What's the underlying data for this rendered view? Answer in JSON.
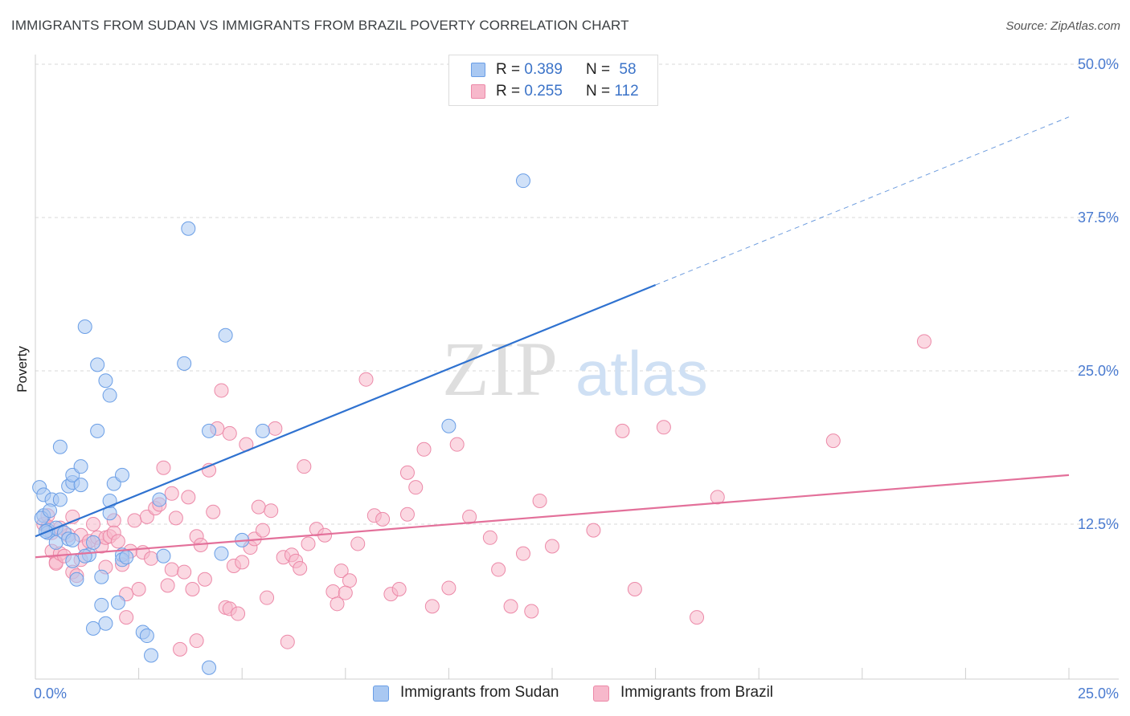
{
  "title": "IMMIGRANTS FROM SUDAN VS IMMIGRANTS FROM BRAZIL POVERTY CORRELATION CHART",
  "source": "Source: ZipAtlas.com",
  "watermark": {
    "zip": "ZIP",
    "atlas": "atlas"
  },
  "chart_data": {
    "type": "scatter",
    "ylabel": "Poverty",
    "xlim": [
      0,
      25
    ],
    "ylim": [
      0,
      50
    ],
    "x_tick_labels": [
      "0.0%",
      "25.0%"
    ],
    "y_ticks": [
      12.5,
      25.0,
      37.5,
      50.0
    ],
    "y_tick_labels": [
      "12.5%",
      "25.0%",
      "37.5%",
      "50.0%"
    ],
    "legend": {
      "rows": [
        {
          "r_label": "R = ",
          "r_value": "0.389",
          "n_label": "N = ",
          "n_value": "58",
          "color": "#a9c8f2"
        },
        {
          "r_label": "R = ",
          "r_value": "0.255",
          "n_label": "N = ",
          "n_value": "112",
          "color": "#f7b8cb"
        }
      ]
    },
    "series": [
      {
        "name": "Immigrants from Sudan",
        "fill": "#a9c8f2",
        "stroke": "#6a9ee6",
        "line_color": "#2f72d0",
        "trend": {
          "x0": 0,
          "y0": 11.5,
          "x1": 15,
          "y1": 32.0,
          "dash_x1": 25,
          "dash_y1": 45.7
        },
        "points": [
          [
            0.1,
            15.5
          ],
          [
            0.2,
            14.9
          ],
          [
            0.2,
            13.2
          ],
          [
            0.3,
            12.0
          ],
          [
            0.4,
            14.5
          ],
          [
            0.3,
            11.8
          ],
          [
            0.5,
            12.2
          ],
          [
            0.6,
            18.8
          ],
          [
            0.5,
            11.0
          ],
          [
            0.6,
            14.5
          ],
          [
            0.8,
            15.6
          ],
          [
            0.7,
            11.8
          ],
          [
            0.8,
            11.3
          ],
          [
            0.9,
            11.2
          ],
          [
            0.9,
            15.9
          ],
          [
            0.9,
            16.5
          ],
          [
            1.1,
            15.7
          ],
          [
            1.1,
            17.2
          ],
          [
            0.9,
            9.5
          ],
          [
            1.0,
            8.0
          ],
          [
            1.3,
            10.0
          ],
          [
            1.2,
            9.9
          ],
          [
            1.4,
            11.0
          ],
          [
            1.2,
            28.6
          ],
          [
            1.5,
            25.5
          ],
          [
            1.7,
            24.2
          ],
          [
            1.8,
            23.0
          ],
          [
            1.5,
            20.1
          ],
          [
            1.8,
            13.4
          ],
          [
            1.8,
            14.4
          ],
          [
            1.9,
            15.8
          ],
          [
            2.1,
            16.5
          ],
          [
            1.6,
            8.2
          ],
          [
            1.6,
            5.9
          ],
          [
            1.7,
            4.4
          ],
          [
            1.4,
            4.0
          ],
          [
            2.0,
            6.1
          ],
          [
            2.1,
            10.0
          ],
          [
            2.1,
            9.6
          ],
          [
            2.2,
            9.8
          ],
          [
            2.6,
            3.7
          ],
          [
            2.7,
            3.4
          ],
          [
            2.8,
            1.8
          ],
          [
            3.0,
            14.5
          ],
          [
            3.1,
            9.9
          ],
          [
            3.6,
            25.6
          ],
          [
            3.7,
            36.6
          ],
          [
            4.2,
            20.1
          ],
          [
            4.2,
            0.8
          ],
          [
            4.5,
            10.1
          ],
          [
            4.6,
            27.9
          ],
          [
            5.0,
            11.2
          ],
          [
            5.5,
            20.1
          ],
          [
            10.0,
            20.5
          ],
          [
            11.8,
            40.5
          ],
          [
            0.15,
            13.0
          ],
          [
            0.25,
            11.9
          ],
          [
            0.35,
            13.6
          ]
        ]
      },
      {
        "name": "Immigrants from Brazil",
        "fill": "#f7b8cb",
        "stroke": "#ec89a8",
        "line_color": "#e3709a",
        "trend": {
          "x0": 0,
          "y0": 9.8,
          "x1": 25,
          "y1": 16.5
        },
        "points": [
          [
            0.2,
            12.5
          ],
          [
            0.3,
            13.2
          ],
          [
            0.3,
            12.3
          ],
          [
            0.4,
            11.8
          ],
          [
            0.4,
            10.3
          ],
          [
            0.5,
            9.4
          ],
          [
            0.5,
            9.3
          ],
          [
            0.6,
            10.1
          ],
          [
            0.7,
            9.9
          ],
          [
            0.8,
            11.6
          ],
          [
            0.9,
            8.6
          ],
          [
            0.9,
            13.1
          ],
          [
            1.0,
            8.3
          ],
          [
            1.1,
            11.6
          ],
          [
            1.2,
            10.7
          ],
          [
            1.3,
            11.1
          ],
          [
            1.4,
            12.5
          ],
          [
            1.5,
            11.4
          ],
          [
            1.6,
            10.7
          ],
          [
            1.7,
            11.4
          ],
          [
            1.7,
            9.0
          ],
          [
            1.8,
            11.5
          ],
          [
            1.9,
            12.8
          ],
          [
            1.9,
            11.8
          ],
          [
            2.0,
            11.1
          ],
          [
            2.1,
            9.2
          ],
          [
            2.2,
            6.8
          ],
          [
            2.3,
            10.3
          ],
          [
            2.4,
            12.8
          ],
          [
            2.5,
            7.2
          ],
          [
            2.6,
            10.2
          ],
          [
            2.7,
            13.1
          ],
          [
            2.8,
            9.7
          ],
          [
            2.9,
            13.8
          ],
          [
            3.0,
            14.1
          ],
          [
            3.1,
            17.1
          ],
          [
            3.2,
            7.5
          ],
          [
            3.3,
            8.8
          ],
          [
            3.4,
            13.0
          ],
          [
            3.5,
            2.3
          ],
          [
            3.6,
            8.6
          ],
          [
            3.7,
            14.7
          ],
          [
            3.8,
            7.2
          ],
          [
            3.9,
            11.5
          ],
          [
            4.0,
            10.8
          ],
          [
            4.1,
            8.0
          ],
          [
            4.2,
            16.9
          ],
          [
            4.3,
            13.5
          ],
          [
            4.4,
            20.3
          ],
          [
            4.5,
            23.4
          ],
          [
            4.6,
            5.7
          ],
          [
            4.7,
            5.6
          ],
          [
            4.8,
            9.1
          ],
          [
            4.9,
            5.2
          ],
          [
            5.0,
            9.4
          ],
          [
            5.1,
            19.0
          ],
          [
            5.2,
            10.6
          ],
          [
            5.3,
            11.3
          ],
          [
            5.4,
            13.9
          ],
          [
            5.5,
            12.0
          ],
          [
            5.6,
            6.5
          ],
          [
            5.7,
            13.6
          ],
          [
            5.8,
            20.3
          ],
          [
            6.0,
            9.8
          ],
          [
            6.1,
            2.9
          ],
          [
            6.2,
            10.0
          ],
          [
            6.3,
            9.5
          ],
          [
            6.4,
            8.9
          ],
          [
            6.5,
            17.2
          ],
          [
            6.6,
            10.9
          ],
          [
            6.8,
            12.1
          ],
          [
            7.0,
            11.6
          ],
          [
            7.2,
            7.0
          ],
          [
            7.3,
            6.0
          ],
          [
            7.4,
            8.7
          ],
          [
            7.6,
            7.9
          ],
          [
            7.8,
            10.9
          ],
          [
            7.5,
            6.9
          ],
          [
            8.0,
            24.3
          ],
          [
            8.2,
            13.2
          ],
          [
            8.4,
            12.9
          ],
          [
            8.6,
            6.8
          ],
          [
            8.8,
            7.2
          ],
          [
            9.0,
            16.7
          ],
          [
            9.2,
            15.5
          ],
          [
            9.4,
            18.6
          ],
          [
            9.6,
            5.8
          ],
          [
            10.0,
            7.3
          ],
          [
            10.2,
            19.0
          ],
          [
            10.5,
            13.1
          ],
          [
            11.0,
            11.4
          ],
          [
            11.2,
            8.8
          ],
          [
            11.5,
            5.8
          ],
          [
            11.8,
            10.1
          ],
          [
            12.0,
            5.4
          ],
          [
            12.2,
            14.4
          ],
          [
            12.5,
            10.7
          ],
          [
            13.5,
            12.0
          ],
          [
            14.2,
            20.1
          ],
          [
            14.5,
            7.2
          ],
          [
            15.2,
            20.4
          ],
          [
            16.0,
            4.9
          ],
          [
            16.5,
            14.7
          ],
          [
            19.3,
            19.3
          ],
          [
            21.5,
            27.4
          ],
          [
            9.0,
            13.3
          ],
          [
            3.3,
            15.0
          ],
          [
            2.2,
            4.9
          ],
          [
            0.6,
            12.2
          ],
          [
            1.1,
            9.6
          ],
          [
            3.9,
            3.0
          ],
          [
            4.7,
            19.9
          ]
        ]
      }
    ]
  }
}
